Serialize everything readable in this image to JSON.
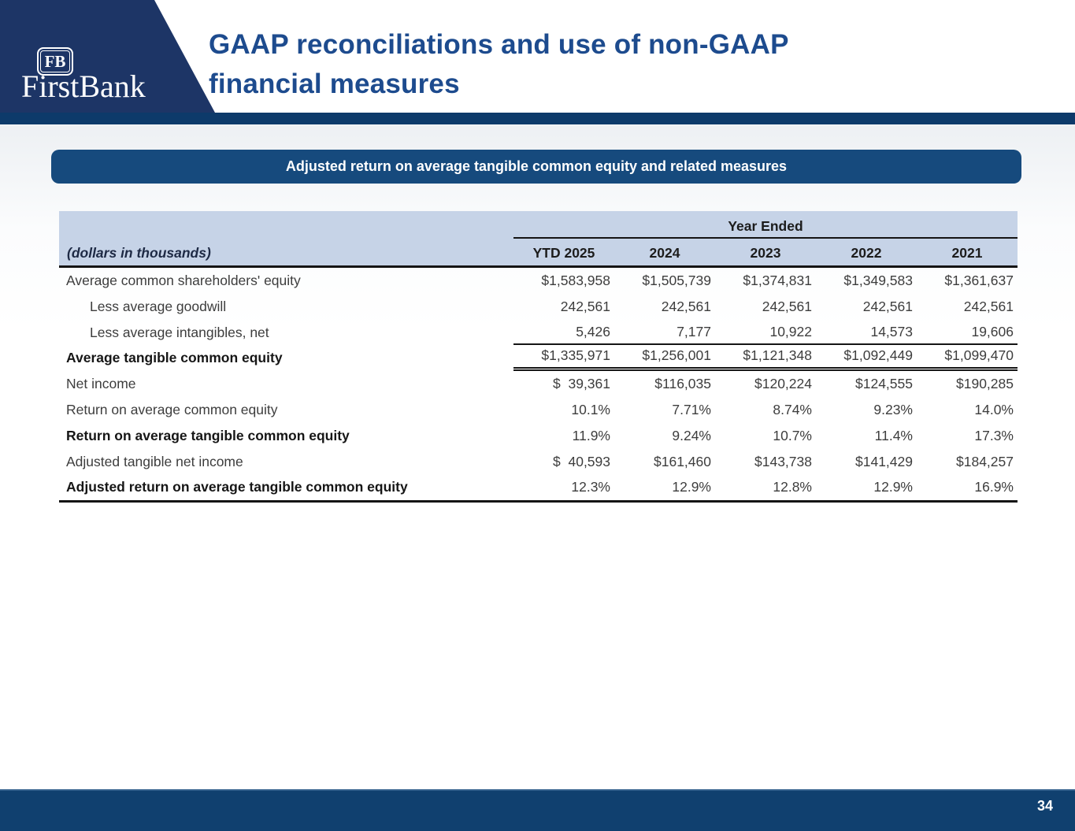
{
  "slide": {
    "logo": {
      "badge": "FB",
      "name": "FirstBank"
    },
    "title_line1": "GAAP reconciliations and use of non-GAAP",
    "title_line2": "financial measures",
    "banner": "Adjusted return on average tangible common equity and related measures",
    "page_number": "34"
  },
  "table": {
    "note": "(dollars in thousands)",
    "group_header": "Year Ended",
    "columns": [
      "YTD 2025",
      "2024",
      "2023",
      "2022",
      "2021"
    ],
    "rows": [
      {
        "label": "Average common shareholders' equity",
        "values": [
          "$1,583,958",
          "$1,505,739",
          "$1,374,831",
          "$1,349,583",
          "$1,361,637"
        ]
      },
      {
        "label": "Less average goodwill",
        "values": [
          "242,561",
          "242,561",
          "242,561",
          "242,561",
          "242,561"
        ]
      },
      {
        "label": "Less average intangibles, net",
        "values": [
          "5,426",
          "7,177",
          "10,922",
          "14,573",
          "19,606"
        ]
      },
      {
        "label": "Average tangible common equity",
        "values": [
          "$1,335,971",
          "$1,256,001",
          "$1,121,348",
          "$1,092,449",
          "$1,099,470"
        ]
      },
      {
        "label": "Net income",
        "values": [
          "$  39,361",
          "$116,035",
          "$120,224",
          "$124,555",
          "$190,285"
        ]
      },
      {
        "label": "Return on average common equity",
        "values": [
          "10.1%",
          "7.71%",
          "8.74%",
          "9.23%",
          "14.0%"
        ]
      },
      {
        "label": "Return on average tangible common equity",
        "values": [
          "11.9%",
          "9.24%",
          "10.7%",
          "11.4%",
          "17.3%"
        ]
      },
      {
        "label": "Adjusted tangible net income",
        "values": [
          "$  40,593",
          "$161,460",
          "$143,738",
          "$141,429",
          "$184,257"
        ]
      },
      {
        "label": "Adjusted return on average tangible common equity",
        "values": [
          "12.3%",
          "12.9%",
          "12.8%",
          "12.9%",
          "16.9%"
        ]
      }
    ]
  },
  "colors": {
    "navy_wedge": "#1d3566",
    "navy_bar": "#0d3a6a",
    "navy_banner": "#164a7d",
    "navy_footer": "#10406f",
    "title_blue": "#1d4b8e",
    "table_header_fill": "#c6d3e7"
  }
}
